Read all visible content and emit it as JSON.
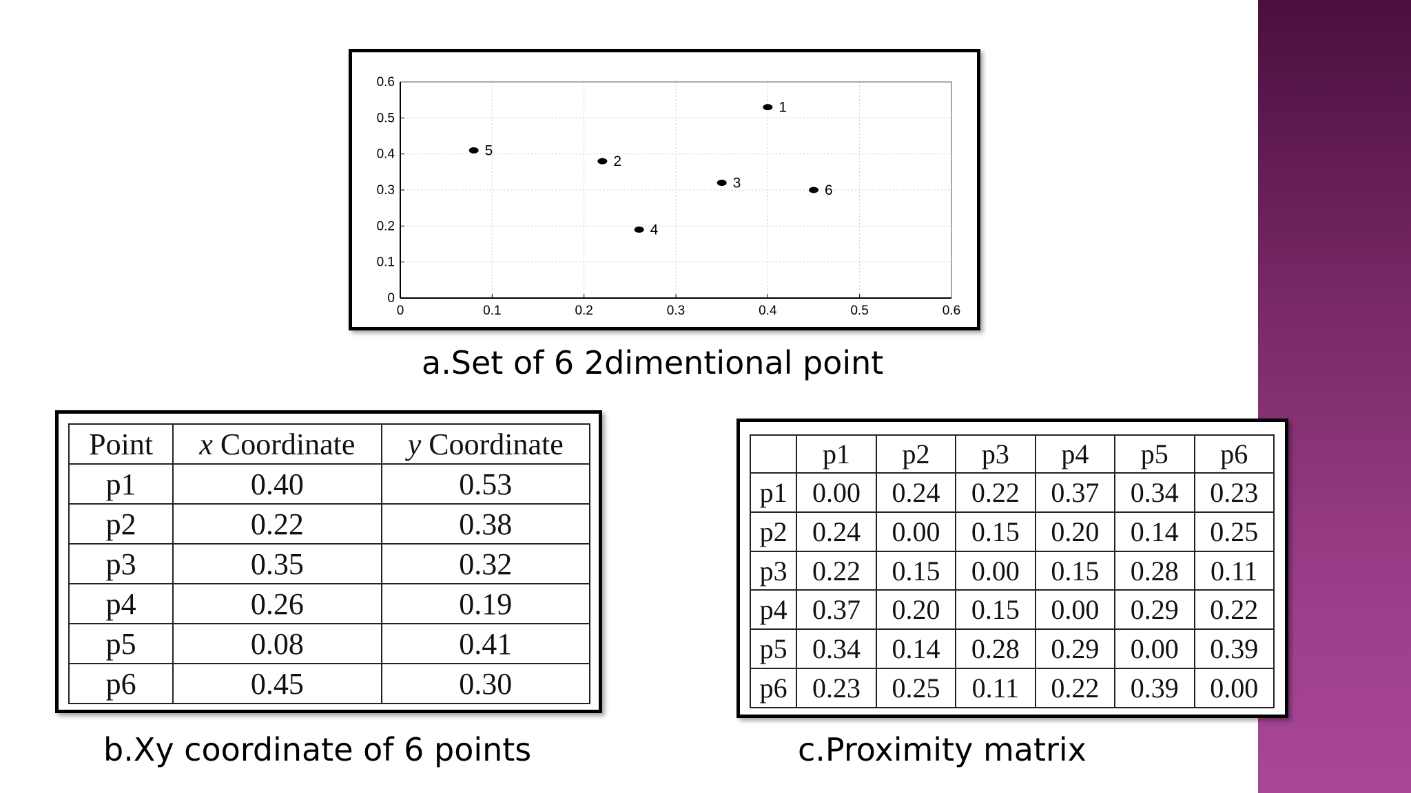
{
  "chart_data": {
    "type": "scatter",
    "xlim": [
      0,
      0.6
    ],
    "ylim": [
      0,
      0.6
    ],
    "xticks": [
      "0",
      "0.1",
      "0.2",
      "0.3",
      "0.4",
      "0.5",
      "0.6"
    ],
    "yticks": [
      "0",
      "0.1",
      "0.2",
      "0.3",
      "0.4",
      "0.5",
      "0.6"
    ],
    "grid": true,
    "points": [
      {
        "label": "1",
        "x": 0.4,
        "y": 0.53
      },
      {
        "label": "2",
        "x": 0.22,
        "y": 0.38
      },
      {
        "label": "3",
        "x": 0.35,
        "y": 0.32
      },
      {
        "label": "4",
        "x": 0.26,
        "y": 0.19
      },
      {
        "label": "5",
        "x": 0.08,
        "y": 0.41
      },
      {
        "label": "6",
        "x": 0.45,
        "y": 0.3
      }
    ]
  },
  "captions": {
    "a": "a.Set of 6 2dimentional point",
    "b": "b.Xy coordinate of 6 points",
    "c": "c.Proximity matrix"
  },
  "coord_table": {
    "header": {
      "point": "Point",
      "x_var": "x",
      "x_rest": " Coordinate",
      "y_var": "y",
      "y_rest": " Coordinate"
    },
    "rows": [
      [
        "p1",
        "0.40",
        "0.53"
      ],
      [
        "p2",
        "0.22",
        "0.38"
      ],
      [
        "p3",
        "0.35",
        "0.32"
      ],
      [
        "p4",
        "0.26",
        "0.19"
      ],
      [
        "p5",
        "0.08",
        "0.41"
      ],
      [
        "p6",
        "0.45",
        "0.30"
      ]
    ]
  },
  "proximity_matrix": {
    "columns": [
      "p1",
      "p2",
      "p3",
      "p4",
      "p5",
      "p6"
    ],
    "rows": [
      {
        "label": "p1",
        "values": [
          "0.00",
          "0.24",
          "0.22",
          "0.37",
          "0.34",
          "0.23"
        ]
      },
      {
        "label": "p2",
        "values": [
          "0.24",
          "0.00",
          "0.15",
          "0.20",
          "0.14",
          "0.25"
        ]
      },
      {
        "label": "p3",
        "values": [
          "0.22",
          "0.15",
          "0.00",
          "0.15",
          "0.28",
          "0.11"
        ]
      },
      {
        "label": "p4",
        "values": [
          "0.37",
          "0.20",
          "0.15",
          "0.00",
          "0.29",
          "0.22"
        ]
      },
      {
        "label": "p5",
        "values": [
          "0.34",
          "0.14",
          "0.28",
          "0.29",
          "0.00",
          "0.39"
        ]
      },
      {
        "label": "p6",
        "values": [
          "0.23",
          "0.25",
          "0.11",
          "0.22",
          "0.39",
          "0.00"
        ]
      }
    ]
  }
}
